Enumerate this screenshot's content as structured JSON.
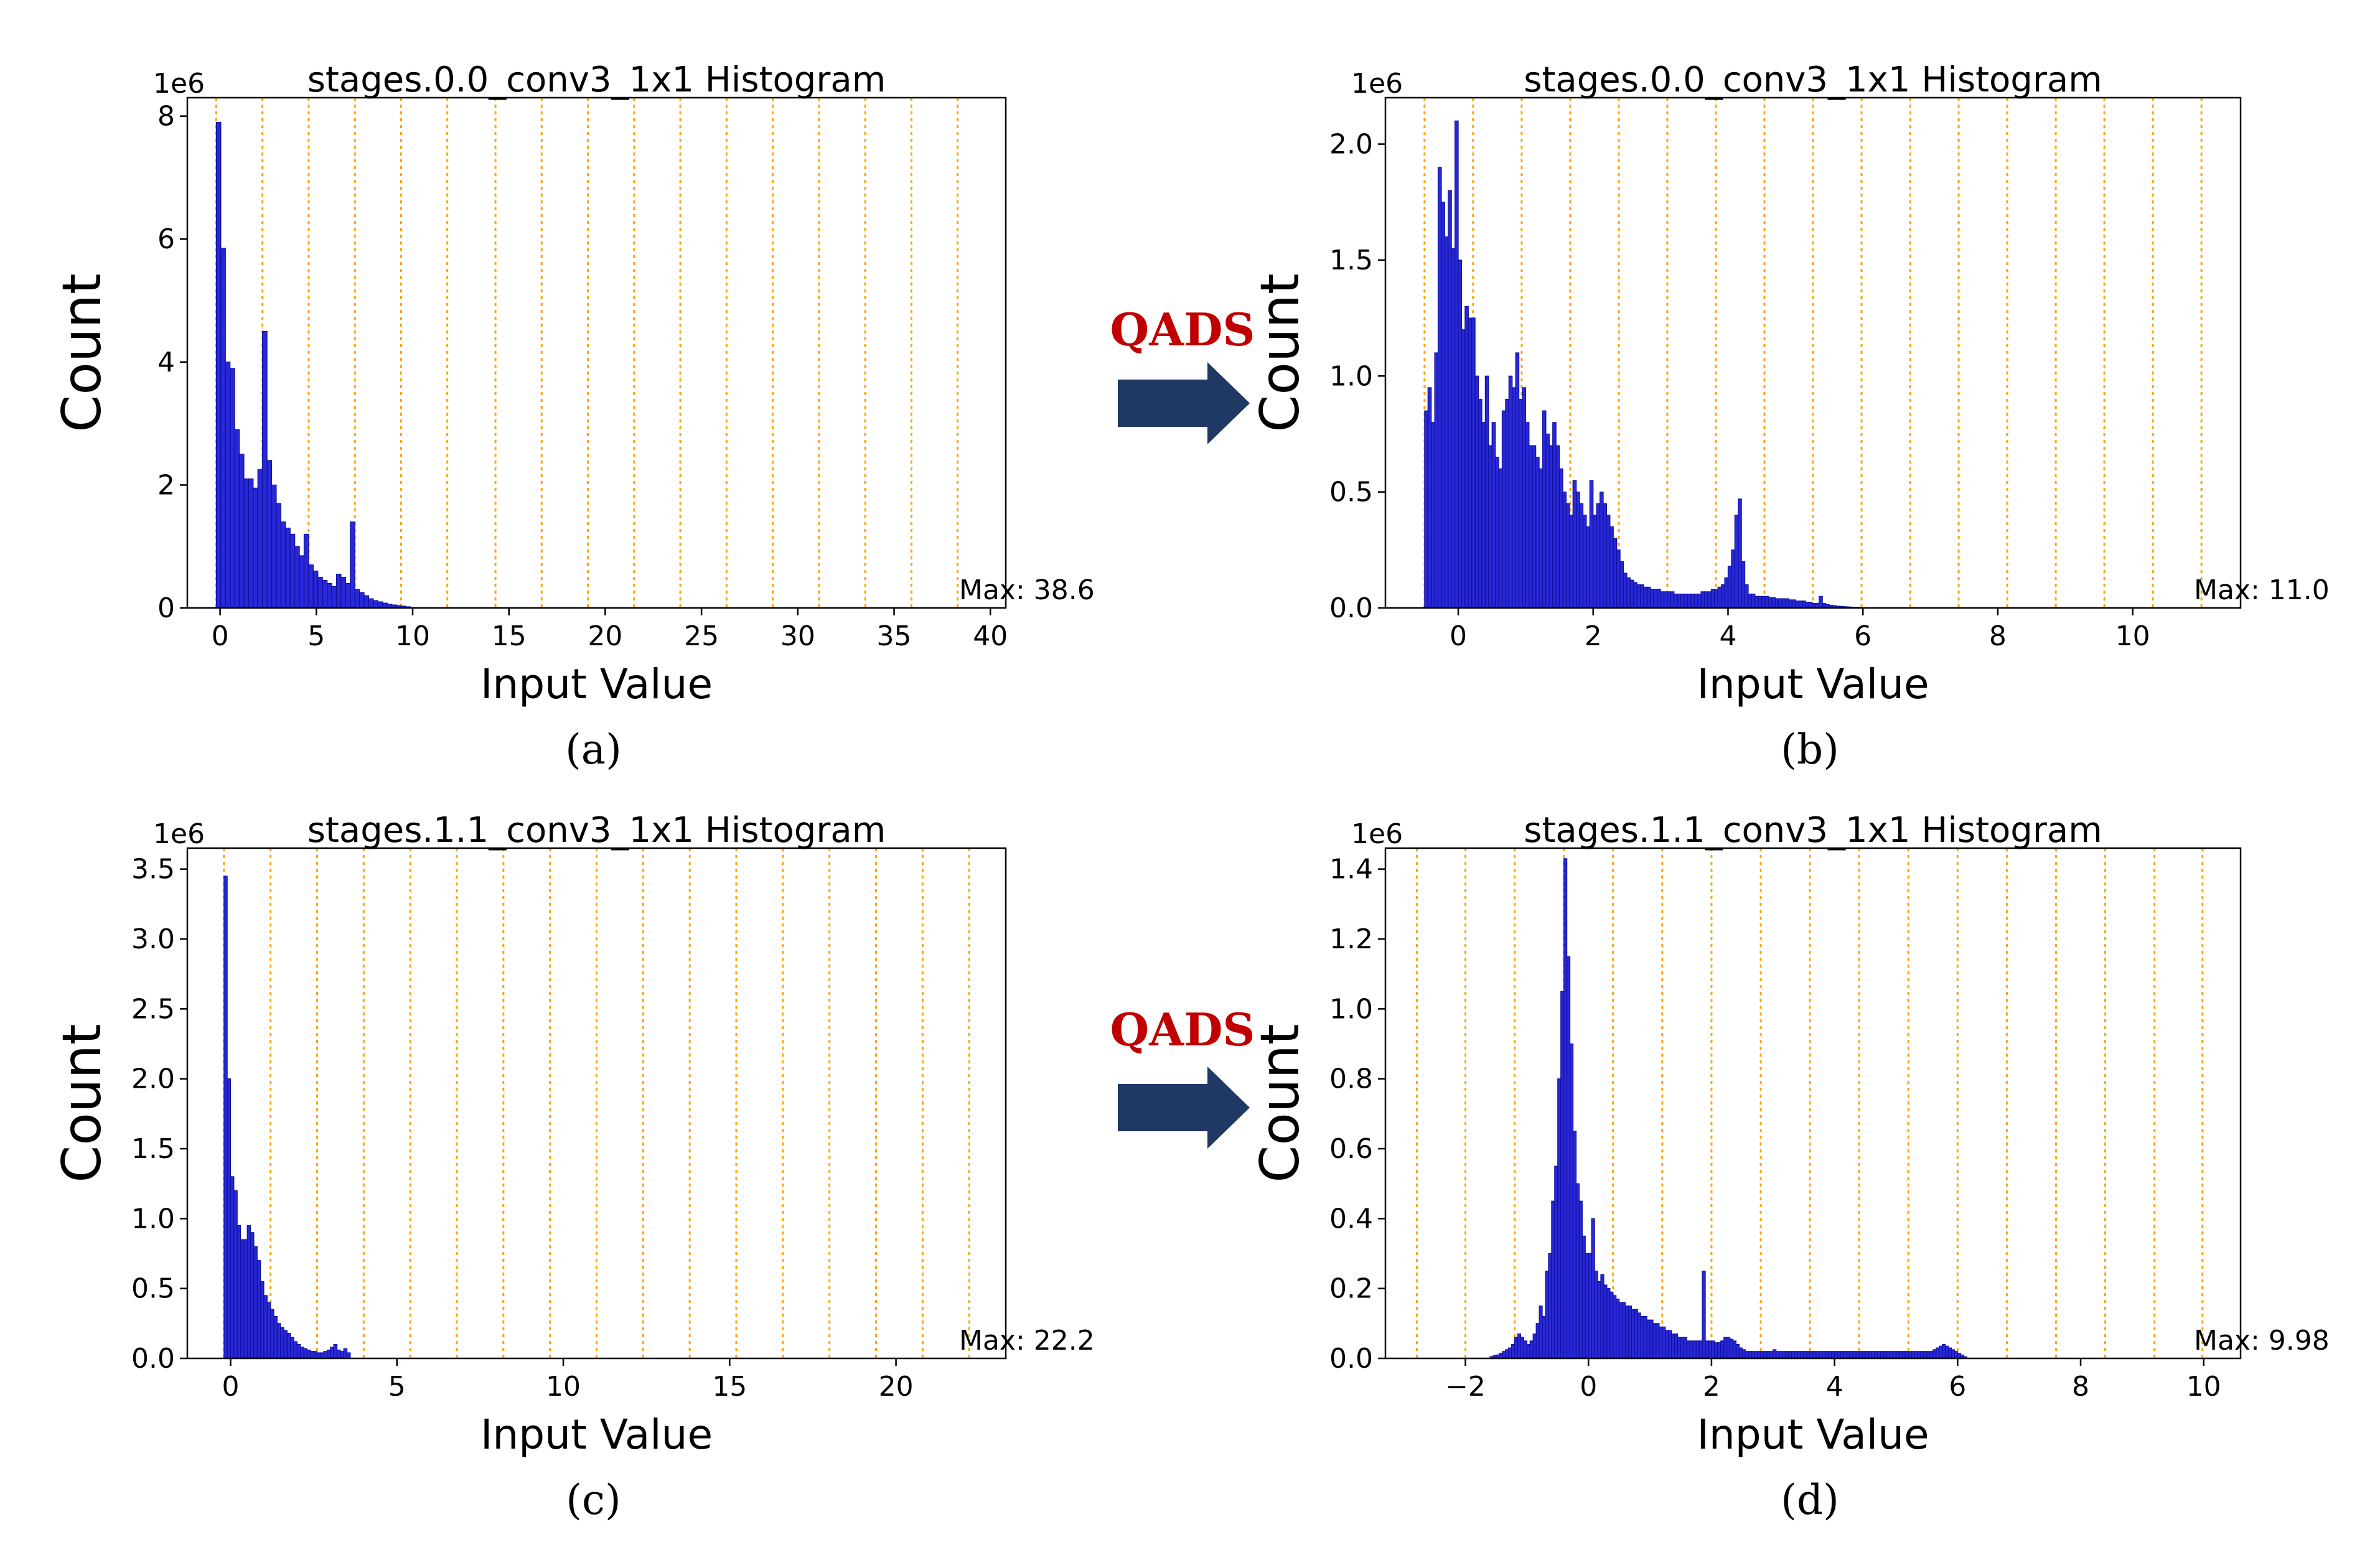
{
  "colors": {
    "bar": "#2828d6",
    "bar_edge": "#1010a0",
    "vline": "#ffa500",
    "arrow": "#1f3864",
    "qads": "#c00000"
  },
  "arrows": [
    {
      "label": "QADS"
    },
    {
      "label": "QADS"
    }
  ],
  "chart_data": [
    {
      "type": "bar",
      "caption": "(a)",
      "title": "stages.0.0_conv3_1x1 Histogram",
      "xlabel": "Input Value",
      "ylabel": "Count",
      "y_offset_label": "1e6",
      "max_label": "Max: 38.6",
      "xlim": [
        -1.7,
        40.8
      ],
      "ylim": [
        0,
        8.3
      ],
      "xticks": [
        0,
        5,
        10,
        15,
        20,
        25,
        30,
        35,
        40
      ],
      "xtick_labels": [
        "0",
        "5",
        "10",
        "15",
        "20",
        "25",
        "30",
        "35",
        "40"
      ],
      "yticks": [
        0,
        2,
        4,
        6,
        8
      ],
      "ytick_labels": [
        "0",
        "2",
        "4",
        "6",
        "8"
      ],
      "vlines": [
        -0.2,
        2.2,
        4.6,
        7.0,
        9.4,
        11.8,
        14.3,
        16.7,
        19.1,
        21.5,
        23.9,
        26.3,
        28.7,
        31.1,
        33.5,
        35.9,
        38.3
      ],
      "bins": {
        "start": -0.2,
        "width": 0.24,
        "values": [
          7.9,
          5.85,
          4.0,
          3.9,
          2.9,
          2.5,
          2.1,
          2.1,
          1.95,
          2.25,
          4.5,
          2.4,
          2.0,
          1.7,
          1.4,
          1.3,
          1.2,
          1.0,
          0.85,
          1.2,
          0.7,
          0.6,
          0.5,
          0.45,
          0.4,
          0.35,
          0.55,
          0.5,
          0.4,
          1.4,
          0.3,
          0.25,
          0.2,
          0.15,
          0.12,
          0.1,
          0.08,
          0.06,
          0.05,
          0.04,
          0.03,
          0.02
        ]
      }
    },
    {
      "type": "bar",
      "caption": "(b)",
      "title": "stages.0.0_conv3_1x1 Histogram",
      "xlabel": "Input Value",
      "ylabel": "Count",
      "y_offset_label": "1e6",
      "max_label": "Max: 11.0",
      "xlim": [
        -1.08,
        11.6
      ],
      "ylim": [
        0,
        2.2
      ],
      "xticks": [
        0,
        2,
        4,
        6,
        8,
        10
      ],
      "xtick_labels": [
        "0",
        "2",
        "4",
        "6",
        "8",
        "10"
      ],
      "yticks": [
        0,
        0.5,
        1.0,
        1.5,
        2.0
      ],
      "ytick_labels": [
        "0.0",
        "0.5",
        "1.0",
        "1.5",
        "2.0"
      ],
      "vlines": [
        -0.5,
        0.22,
        0.94,
        1.66,
        2.38,
        3.1,
        3.82,
        4.54,
        5.26,
        5.98,
        6.7,
        7.42,
        8.14,
        8.86,
        9.58,
        10.3,
        11.02
      ],
      "bins": {
        "start": -0.5,
        "width": 0.05,
        "values": [
          0.85,
          0.95,
          0.8,
          1.1,
          1.9,
          1.75,
          1.6,
          1.8,
          1.55,
          2.1,
          1.5,
          1.2,
          1.3,
          1.25,
          1.25,
          1.0,
          0.9,
          0.8,
          1.0,
          0.7,
          0.8,
          0.65,
          0.6,
          0.85,
          0.9,
          1.0,
          0.95,
          1.1,
          0.9,
          0.95,
          0.8,
          0.7,
          0.7,
          0.65,
          0.6,
          0.85,
          0.75,
          0.7,
          0.8,
          0.7,
          0.6,
          0.5,
          0.45,
          0.4,
          0.55,
          0.5,
          0.45,
          0.4,
          0.35,
          0.55,
          0.4,
          0.45,
          0.5,
          0.45,
          0.4,
          0.35,
          0.3,
          0.25,
          0.2,
          0.15,
          0.13,
          0.12,
          0.11,
          0.1,
          0.1,
          0.09,
          0.09,
          0.08,
          0.08,
          0.08,
          0.07,
          0.07,
          0.07,
          0.07,
          0.06,
          0.06,
          0.06,
          0.06,
          0.06,
          0.06,
          0.06,
          0.06,
          0.07,
          0.07,
          0.07,
          0.08,
          0.08,
          0.09,
          0.1,
          0.13,
          0.18,
          0.25,
          0.4,
          0.47,
          0.2,
          0.1,
          0.06,
          0.06,
          0.05,
          0.05,
          0.05,
          0.05,
          0.045,
          0.045,
          0.04,
          0.04,
          0.04,
          0.04,
          0.035,
          0.035,
          0.03,
          0.03,
          0.03,
          0.025,
          0.025,
          0.02,
          0.02,
          0.05,
          0.02,
          0.015,
          0.012,
          0.01,
          0.008,
          0.007,
          0.006,
          0.005,
          0.004,
          0.003,
          0.003,
          0.002
        ]
      }
    },
    {
      "type": "bar",
      "caption": "(c)",
      "title": "stages.1.1_conv3_1x1 Histogram",
      "xlabel": "Input Value",
      "ylabel": "Count",
      "y_offset_label": "1e6",
      "max_label": "Max: 22.2",
      "xlim": [
        -1.3,
        23.3
      ],
      "ylim": [
        0,
        3.65
      ],
      "xticks": [
        0,
        5,
        10,
        15,
        20
      ],
      "xtick_labels": [
        "0",
        "5",
        "10",
        "15",
        "20"
      ],
      "yticks": [
        0,
        0.5,
        1.0,
        1.5,
        2.0,
        2.5,
        3.0,
        3.5
      ],
      "ytick_labels": [
        "0.0",
        "0.5",
        "1.0",
        "1.5",
        "2.0",
        "2.5",
        "3.0",
        "3.5"
      ],
      "vlines": [
        -0.2,
        1.2,
        2.6,
        4.0,
        5.4,
        6.8,
        8.2,
        9.6,
        11.0,
        12.4,
        13.8,
        15.2,
        16.6,
        18.0,
        19.4,
        20.8,
        22.2
      ],
      "bins": {
        "start": -0.2,
        "width": 0.1,
        "values": [
          3.45,
          2.0,
          1.3,
          1.2,
          0.95,
          0.85,
          0.85,
          0.95,
          0.9,
          0.8,
          0.7,
          0.55,
          0.45,
          0.4,
          0.35,
          0.3,
          0.25,
          0.22,
          0.2,
          0.18,
          0.15,
          0.12,
          0.1,
          0.08,
          0.07,
          0.06,
          0.05,
          0.05,
          0.04,
          0.04,
          0.05,
          0.06,
          0.08,
          0.1,
          0.06,
          0.05,
          0.07,
          0.04
        ]
      }
    },
    {
      "type": "bar",
      "caption": "(d)",
      "title": "stages.1.1_conv3_1x1 Histogram",
      "xlabel": "Input Value",
      "ylabel": "Count",
      "y_offset_label": "1e6",
      "max_label": "Max: 9.98",
      "xlim": [
        -3.3,
        10.6
      ],
      "ylim": [
        0,
        1.46
      ],
      "xticks": [
        -2,
        0,
        2,
        4,
        6,
        8,
        10
      ],
      "xtick_labels": [
        "−2",
        "0",
        "2",
        "4",
        "6",
        "8",
        "10"
      ],
      "yticks": [
        0,
        0.2,
        0.4,
        0.6,
        0.8,
        1.0,
        1.2,
        1.4
      ],
      "ytick_labels": [
        "0.0",
        "0.2",
        "0.4",
        "0.6",
        "0.8",
        "1.0",
        "1.2",
        "1.4"
      ],
      "vlines": [
        -2.79,
        -2.0,
        -1.2,
        -0.4,
        0.4,
        1.2,
        2.0,
        2.8,
        3.6,
        4.4,
        5.2,
        6.0,
        6.8,
        7.6,
        8.4,
        9.2,
        9.98
      ],
      "bins": {
        "start": -1.6,
        "width": 0.05,
        "values": [
          0.005,
          0.008,
          0.01,
          0.015,
          0.02,
          0.025,
          0.03,
          0.04,
          0.06,
          0.07,
          0.06,
          0.05,
          0.04,
          0.05,
          0.07,
          0.1,
          0.15,
          0.12,
          0.25,
          0.3,
          0.45,
          0.55,
          0.8,
          1.05,
          1.43,
          1.15,
          0.9,
          0.65,
          0.5,
          0.45,
          0.35,
          0.3,
          0.3,
          0.4,
          0.25,
          0.22,
          0.24,
          0.21,
          0.2,
          0.19,
          0.18,
          0.17,
          0.16,
          0.16,
          0.15,
          0.15,
          0.14,
          0.14,
          0.13,
          0.12,
          0.12,
          0.11,
          0.11,
          0.1,
          0.1,
          0.09,
          0.09,
          0.08,
          0.08,
          0.07,
          0.07,
          0.06,
          0.06,
          0.06,
          0.05,
          0.05,
          0.05,
          0.05,
          0.05,
          0.25,
          0.05,
          0.05,
          0.05,
          0.045,
          0.045,
          0.05,
          0.06,
          0.06,
          0.055,
          0.05,
          0.04,
          0.03,
          0.025,
          0.02,
          0.02,
          0.02,
          0.02,
          0.02,
          0.02,
          0.02,
          0.02,
          0.02,
          0.025,
          0.02,
          0.02,
          0.02,
          0.02,
          0.02,
          0.02,
          0.02,
          0.02,
          0.02,
          0.02,
          0.02,
          0.02,
          0.02,
          0.02,
          0.02,
          0.02,
          0.02,
          0.02,
          0.02,
          0.02,
          0.02,
          0.02,
          0.02,
          0.02,
          0.02,
          0.02,
          0.02,
          0.02,
          0.02,
          0.02,
          0.02,
          0.02,
          0.02,
          0.02,
          0.02,
          0.02,
          0.02,
          0.02,
          0.02,
          0.02,
          0.02,
          0.02,
          0.02,
          0.02,
          0.02,
          0.02,
          0.02,
          0.02,
          0.02,
          0.02,
          0.02,
          0.025,
          0.03,
          0.035,
          0.04,
          0.035,
          0.03,
          0.025,
          0.02,
          0.015,
          0.01,
          0.005
        ]
      }
    }
  ]
}
